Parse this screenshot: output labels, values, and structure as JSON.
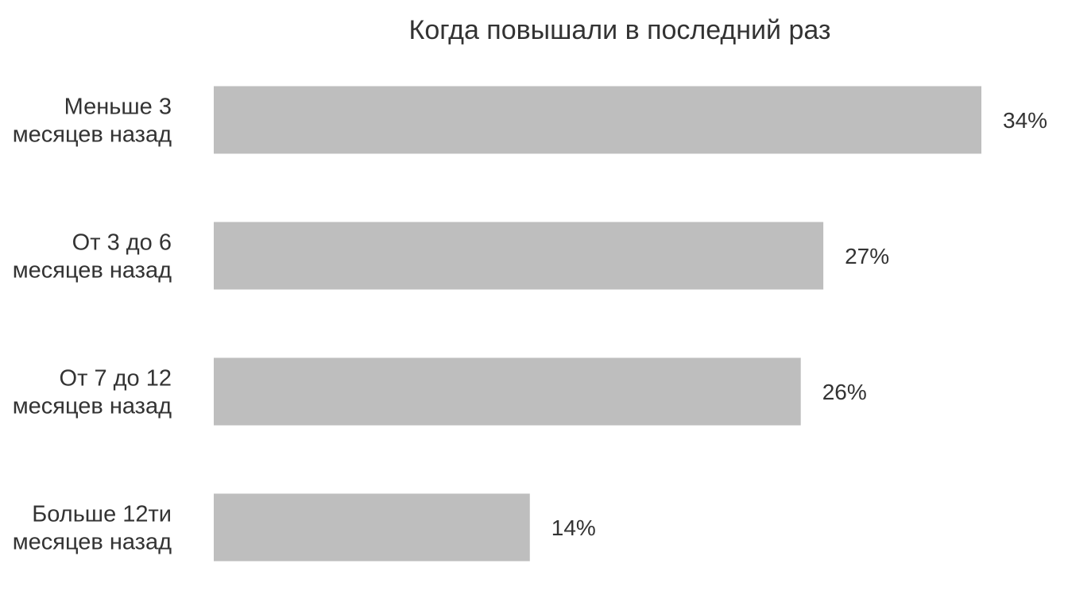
{
  "chart_data": {
    "type": "bar",
    "orientation": "horizontal",
    "title": "Когда повышали в последний раз",
    "categories": [
      [
        "Меньше 3",
        "месяцев назад"
      ],
      [
        "От 3 до 6",
        "месяцев назад"
      ],
      [
        "От 7 до 12",
        "месяцев назад"
      ],
      [
        "Больше 12ти",
        "месяцев назад"
      ]
    ],
    "values": [
      34,
      27,
      26,
      14
    ],
    "value_labels": [
      "34%",
      "27%",
      "26%",
      "14%"
    ],
    "xlabel": "",
    "ylabel": "",
    "xlim": [
      0,
      34
    ],
    "grid": false,
    "legend": "none",
    "bar_color": "#bebebe",
    "text_color": "#333333"
  }
}
